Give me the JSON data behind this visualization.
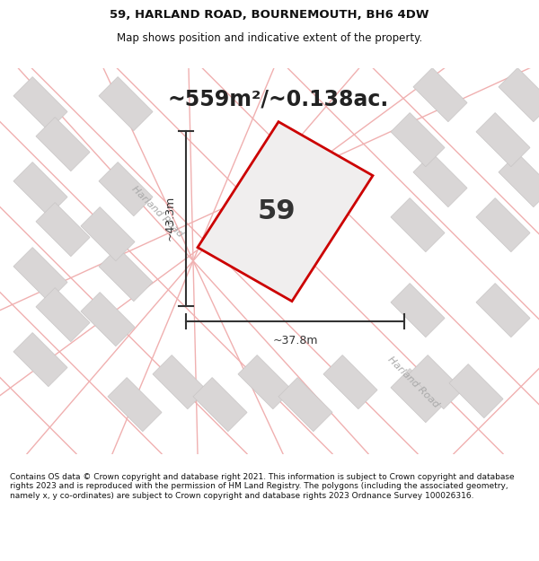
{
  "title_line1": "59, HARLAND ROAD, BOURNEMOUTH, BH6 4DW",
  "title_line2": "Map shows position and indicative extent of the property.",
  "area_text": "~559m²/~0.138ac.",
  "number_label": "59",
  "dim_vertical": "~43.3m",
  "dim_horizontal": "~37.8m",
  "road_label_1": "Harland Road",
  "road_label_2": "Harland Road",
  "footer_text": "Contains OS data © Crown copyright and database right 2021. This information is subject to Crown copyright and database rights 2023 and is reproduced with the permission of HM Land Registry. The polygons (including the associated geometry, namely x, y co-ordinates) are subject to Crown copyright and database rights 2023 Ordnance Survey 100026316.",
  "map_bg_color": "#eeecec",
  "building_fill": "#d9d6d6",
  "building_edge": "#c8c5c5",
  "road_color": "#f0b0b0",
  "plot_fill": "#f0eeee",
  "plot_edge": "#cc0000",
  "dim_color": "#333333",
  "road_label_color": "#aaaaaa",
  "title_bg": "#ffffff",
  "footer_bg": "#ffffff",
  "area_fontsize": 17,
  "number_fontsize": 22,
  "dim_fontsize": 9,
  "road_fontsize": 8
}
